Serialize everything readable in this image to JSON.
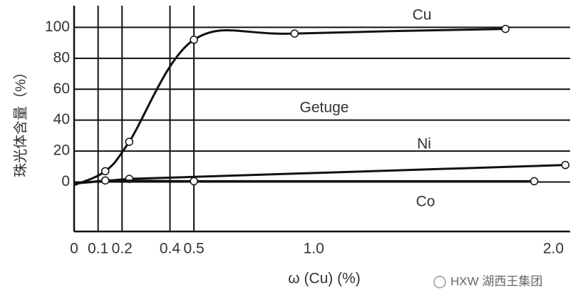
{
  "chart_data": {
    "type": "line",
    "y_label": "珠光体含量（%）",
    "x_label": "ω (Cu) (%)",
    "annotation": "Getuge",
    "watermark": "HXW 湖西王集团",
    "xlim": [
      0,
      2.07
    ],
    "ylim": [
      -32,
      114
    ],
    "xticks": [
      0,
      0.1,
      0.2,
      0.4,
      0.5,
      {
        "value": 1,
        "label": "1.0"
      },
      {
        "value": 2,
        "label": "2.0"
      }
    ],
    "yticks": [
      0,
      20,
      40,
      60,
      80,
      100
    ],
    "grid": true,
    "series": [
      {
        "name": "Cu",
        "color": "#111111",
        "x": [
          0,
          0.13,
          0.23,
          0.5,
          0.92,
          1.8
        ],
        "values": [
          -2,
          7,
          26,
          92,
          96,
          99
        ]
      },
      {
        "name": "Ni",
        "color": "#111111",
        "x": [
          0,
          0.23,
          2.05
        ],
        "values": [
          -1,
          2,
          11
        ]
      },
      {
        "name": "Co",
        "color": "#111111",
        "x": [
          0,
          0.13,
          0.5,
          1.92
        ],
        "values": [
          -1,
          1,
          0.5,
          0.5
        ]
      }
    ]
  }
}
